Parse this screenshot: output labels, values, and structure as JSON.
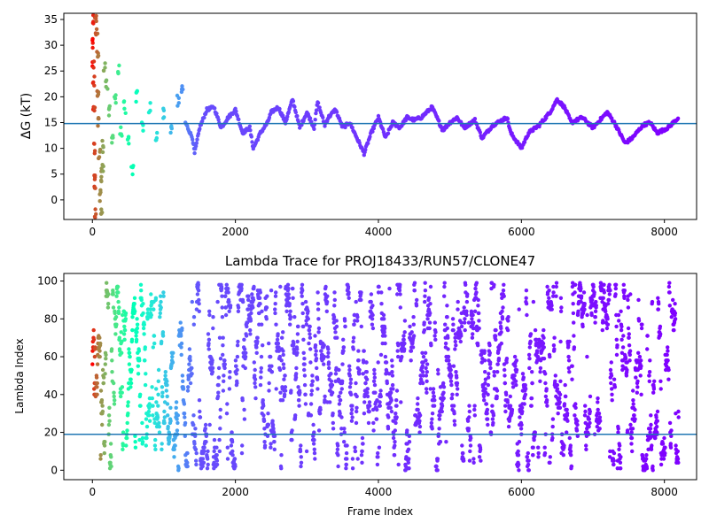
{
  "figure": {
    "background": "#ffffff",
    "colormap": "rainbow"
  },
  "chart_data": [
    {
      "type": "scatter",
      "title": "",
      "xlabel": "",
      "ylabel": "ΔG (kT)",
      "xlim": [
        -400,
        8450
      ],
      "ylim": [
        -3.8,
        36.2
      ],
      "xticks": [
        0,
        2000,
        4000,
        6000,
        8000
      ],
      "yticks": [
        0,
        5,
        10,
        15,
        20,
        25,
        30,
        35
      ],
      "hline": {
        "y": 14.8,
        "color": "#1f77b4"
      },
      "series": [
        {
          "n_frames": 8200,
          "marker_size": 3,
          "color_by": "frame index (rainbow colormap, red early → purple late)",
          "early_points": [
            {
              "x": 0,
              "y": 30
            },
            {
              "x": 5,
              "y": 35
            },
            {
              "x": 10,
              "y": 26
            },
            {
              "x": 15,
              "y": 23
            },
            {
              "x": 20,
              "y": 18
            },
            {
              "x": 25,
              "y": 10
            },
            {
              "x": 30,
              "y": 5
            },
            {
              "x": 35,
              "y": 3.5
            },
            {
              "x": 40,
              "y": -2.7
            },
            {
              "x": 50,
              "y": 35.2
            },
            {
              "x": 60,
              "y": 32
            },
            {
              "x": 70,
              "y": 28
            },
            {
              "x": 80,
              "y": 20
            },
            {
              "x": 90,
              "y": 15
            },
            {
              "x": 100,
              "y": 8.5
            },
            {
              "x": 110,
              "y": 1
            },
            {
              "x": 120,
              "y": 4.5
            },
            {
              "x": 130,
              "y": -2.3
            },
            {
              "x": 140,
              "y": 6
            },
            {
              "x": 150,
              "y": 10.5
            },
            {
              "x": 170,
              "y": 26
            },
            {
              "x": 200,
              "y": 22
            },
            {
              "x": 240,
              "y": 17
            },
            {
              "x": 280,
              "y": 12
            },
            {
              "x": 320,
              "y": 20
            },
            {
              "x": 360,
              "y": 25
            },
            {
              "x": 400,
              "y": 13
            },
            {
              "x": 450,
              "y": 18
            },
            {
              "x": 500,
              "y": 11
            },
            {
              "x": 560,
              "y": 6
            },
            {
              "x": 620,
              "y": 20
            },
            {
              "x": 700,
              "y": 14
            },
            {
              "x": 800,
              "y": 18
            },
            {
              "x": 900,
              "y": 12
            },
            {
              "x": 1000,
              "y": 17
            },
            {
              "x": 1100,
              "y": 14
            },
            {
              "x": 1200,
              "y": 19
            },
            {
              "x": 1250,
              "y": 21
            }
          ],
          "trajectory": [
            {
              "x": 1300,
              "y": 15
            },
            {
              "x": 1400,
              "y": 12
            },
            {
              "x": 1430,
              "y": 9
            },
            {
              "x": 1500,
              "y": 14
            },
            {
              "x": 1600,
              "y": 17.5
            },
            {
              "x": 1700,
              "y": 18
            },
            {
              "x": 1800,
              "y": 14
            },
            {
              "x": 1900,
              "y": 16
            },
            {
              "x": 2000,
              "y": 17.5
            },
            {
              "x": 2100,
              "y": 13
            },
            {
              "x": 2200,
              "y": 14
            },
            {
              "x": 2250,
              "y": 10
            },
            {
              "x": 2350,
              "y": 13
            },
            {
              "x": 2450,
              "y": 15
            },
            {
              "x": 2500,
              "y": 17
            },
            {
              "x": 2600,
              "y": 18
            },
            {
              "x": 2700,
              "y": 15
            },
            {
              "x": 2800,
              "y": 19.5
            },
            {
              "x": 2900,
              "y": 14
            },
            {
              "x": 3000,
              "y": 17
            },
            {
              "x": 3100,
              "y": 14
            },
            {
              "x": 3150,
              "y": 19
            },
            {
              "x": 3250,
              "y": 14.5
            },
            {
              "x": 3300,
              "y": 16
            },
            {
              "x": 3400,
              "y": 17.5
            },
            {
              "x": 3500,
              "y": 14
            },
            {
              "x": 3600,
              "y": 15
            },
            {
              "x": 3700,
              "y": 12
            },
            {
              "x": 3800,
              "y": 9
            },
            {
              "x": 3900,
              "y": 13
            },
            {
              "x": 4000,
              "y": 16
            },
            {
              "x": 4100,
              "y": 12
            },
            {
              "x": 4200,
              "y": 15
            },
            {
              "x": 4300,
              "y": 14
            },
            {
              "x": 4400,
              "y": 16
            },
            {
              "x": 4500,
              "y": 15.5
            },
            {
              "x": 4600,
              "y": 16
            },
            {
              "x": 4750,
              "y": 18
            },
            {
              "x": 4900,
              "y": 13.5
            },
            {
              "x": 5000,
              "y": 15
            },
            {
              "x": 5100,
              "y": 16
            },
            {
              "x": 5200,
              "y": 14
            },
            {
              "x": 5350,
              "y": 15.5
            },
            {
              "x": 5450,
              "y": 12
            },
            {
              "x": 5600,
              "y": 14.5
            },
            {
              "x": 5800,
              "y": 16
            },
            {
              "x": 5850,
              "y": 13
            },
            {
              "x": 6000,
              "y": 10
            },
            {
              "x": 6100,
              "y": 13
            },
            {
              "x": 6250,
              "y": 14.5
            },
            {
              "x": 6400,
              "y": 17
            },
            {
              "x": 6500,
              "y": 19.5
            },
            {
              "x": 6600,
              "y": 18
            },
            {
              "x": 6700,
              "y": 15
            },
            {
              "x": 6850,
              "y": 16
            },
            {
              "x": 7000,
              "y": 14
            },
            {
              "x": 7200,
              "y": 17
            },
            {
              "x": 7300,
              "y": 15
            },
            {
              "x": 7450,
              "y": 11
            },
            {
              "x": 7550,
              "y": 12
            },
            {
              "x": 7700,
              "y": 14.5
            },
            {
              "x": 7800,
              "y": 15
            },
            {
              "x": 7900,
              "y": 13
            },
            {
              "x": 8050,
              "y": 14
            },
            {
              "x": 8200,
              "y": 16
            }
          ]
        }
      ]
    },
    {
      "type": "scatter",
      "title": "Lambda Trace for PROJ18433/RUN57/CLONE47",
      "xlabel": "Frame Index",
      "ylabel": "Lambda Index",
      "xlim": [
        -400,
        8450
      ],
      "ylim": [
        -5,
        104
      ],
      "xticks": [
        0,
        2000,
        4000,
        6000,
        8000
      ],
      "yticks": [
        0,
        20,
        40,
        60,
        80,
        100
      ],
      "hline": {
        "y": 19,
        "color": "#1f77b4"
      },
      "series": [
        {
          "n_frames": 8200,
          "marker_size": 3,
          "value_range": [
            0,
            99
          ],
          "color_by": "frame index (rainbow colormap, red early → purple late)",
          "distribution": "lambda index jumps between 0 and 99 across all frames"
        }
      ]
    }
  ]
}
